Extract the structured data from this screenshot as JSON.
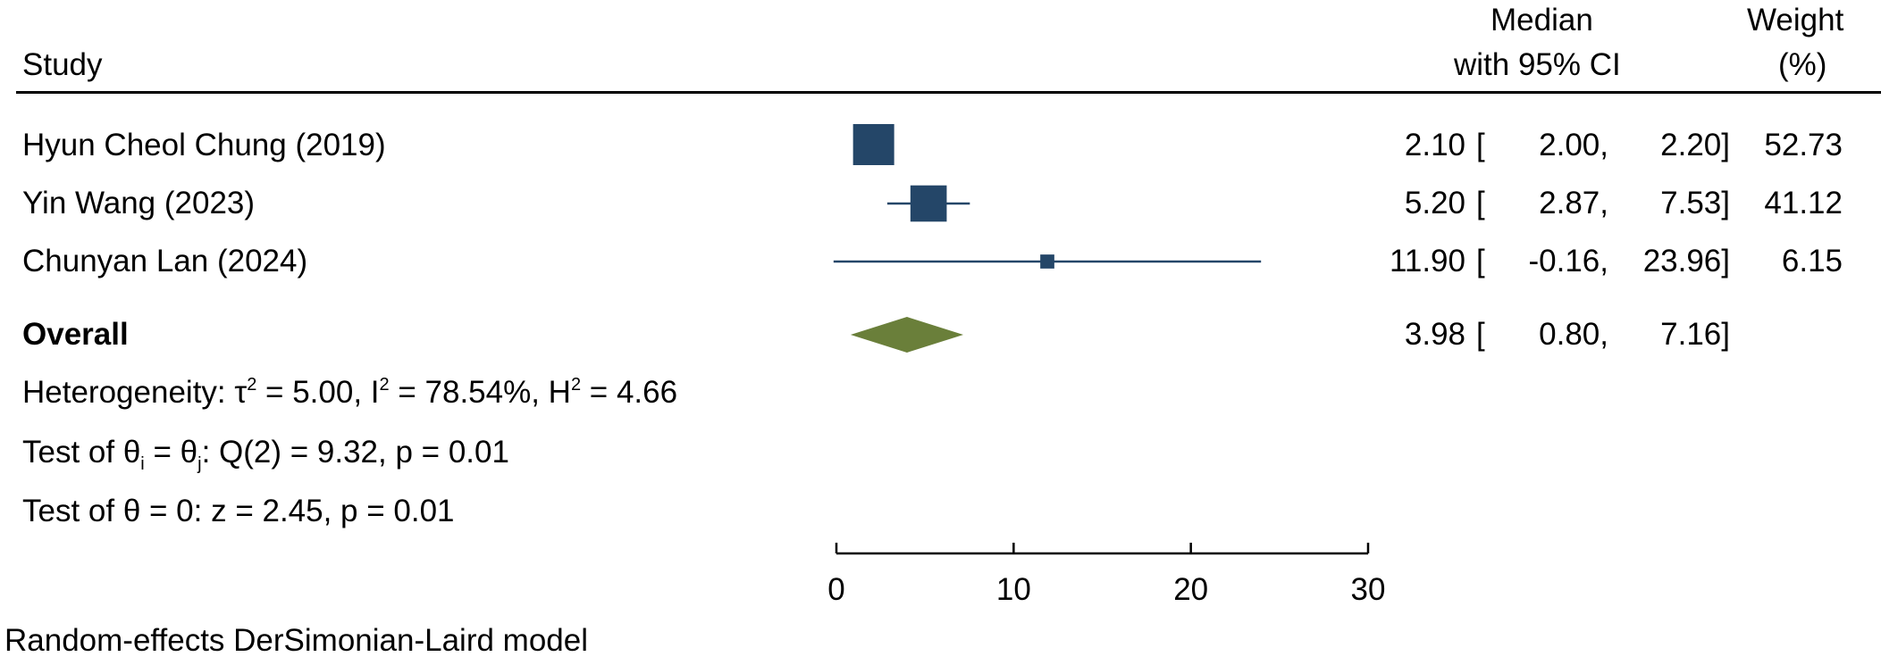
{
  "header": {
    "study": "Study",
    "median_line1": "Median",
    "median_line2": "with 95% CI",
    "weight_line1": "Weight",
    "weight_line2": "(%)"
  },
  "chart_data": {
    "type": "forest",
    "estimate_label": "Median with 95% CI",
    "xlim": [
      0,
      30
    ],
    "xticks": [
      0,
      10,
      20,
      30
    ],
    "studies": [
      {
        "name": "Hyun Cheol Chung (2019)",
        "median": 2.1,
        "lower": 2.0,
        "upper": 2.2,
        "weight": 52.73,
        "median_txt": "2.10",
        "lower_txt": "2.00,",
        "upper_txt": "2.20]",
        "weight_txt": "52.73"
      },
      {
        "name": "Yin Wang (2023)",
        "median": 5.2,
        "lower": 2.87,
        "upper": 7.53,
        "weight": 41.12,
        "median_txt": "5.20",
        "lower_txt": "2.87,",
        "upper_txt": "7.53]",
        "weight_txt": "41.12"
      },
      {
        "name": "Chunyan Lan (2024)",
        "median": 11.9,
        "lower": -0.16,
        "upper": 23.96,
        "weight": 6.15,
        "median_txt": "11.90",
        "lower_txt": "-0.16,",
        "upper_txt": "23.96]",
        "weight_txt": "6.15"
      }
    ],
    "overall": {
      "name": "Overall",
      "median": 3.98,
      "lower": 0.8,
      "upper": 7.16,
      "median_txt": "3.98",
      "lower_txt": "0.80,",
      "upper_txt": "7.16]"
    },
    "bracket_open": "[",
    "marker_color": "#244668",
    "diamond_color": "#6a7f3a"
  },
  "stats": {
    "heterogeneity_prefix": "Heterogeneity: τ",
    "tau_sq": "2",
    "heterogeneity_mid1": " = 5.00, I",
    "i_sq": "2",
    "heterogeneity_mid2": " = 78.54%, H",
    "h_sq": "2",
    "heterogeneity_end": " = 4.66",
    "test1_prefix": "Test of θ",
    "test1_sub_i": "i",
    "test1_eq": " = θ",
    "test1_sub_j": "j",
    "test1_end": ": Q(2) = 9.32, p = 0.01",
    "test2": "Test of θ = 0: z = 2.45, p = 0.01"
  },
  "footer": {
    "model": "Random-effects DerSimonian-Laird model"
  }
}
